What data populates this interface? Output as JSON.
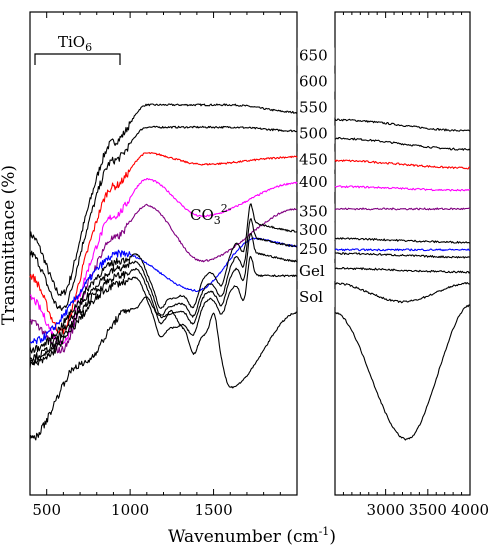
{
  "chart_data": {
    "type": "line",
    "xlabel_main": "Wavenumber (cm",
    "xlabel_sup": "-1",
    "xlabel_close": ")",
    "ylabel": "Transmittance (%)",
    "panels": [
      {
        "xlim": [
          400,
          2000
        ],
        "ticks": [
          500,
          1000,
          1500
        ]
      },
      {
        "xlim": [
          2400,
          4000
        ],
        "ticks": [
          3000,
          3500,
          4000
        ]
      }
    ],
    "annotations": {
      "tio6_main": "TiO",
      "tio6_sub": "6",
      "co3_main": "CO",
      "co3_sub": "3",
      "co3_sup": "2-"
    },
    "series": [
      {
        "name": "650",
        "color": "#000000",
        "level": 83,
        "shape": "calcined",
        "x": [
          400,
          600,
          900,
          1100,
          1600,
          2000,
          2400,
          4000
        ],
        "y": [
          35,
          18,
          60,
          70,
          70,
          68,
          66,
          63
        ]
      },
      {
        "name": "600",
        "color": "#000000",
        "level": 76,
        "shape": "calcined",
        "x": [
          400,
          600,
          900,
          1100,
          1600,
          2000,
          2400,
          4000
        ],
        "y": [
          30,
          14,
          55,
          64,
          64,
          63,
          61,
          58
        ]
      },
      {
        "name": "550",
        "color": "#ff0000",
        "level": 69,
        "shape": "calcined",
        "x": [
          400,
          600,
          900,
          1100,
          1430,
          2000,
          2400,
          4000
        ],
        "y": [
          24,
          8,
          48,
          57,
          54,
          56,
          55,
          53
        ]
      },
      {
        "name": "500",
        "color": "#ff00ff",
        "level": 62,
        "shape": "calcined",
        "x": [
          400,
          600,
          900,
          1100,
          1430,
          2000,
          2400,
          4000
        ],
        "y": [
          18,
          5,
          40,
          50,
          40,
          49,
          48,
          47
        ]
      },
      {
        "name": "450",
        "color": "#800080",
        "level": 55,
        "shape": "calcined",
        "x": [
          400,
          600,
          900,
          1100,
          1430,
          2000,
          2400,
          4000
        ],
        "y": [
          12,
          3,
          34,
          43,
          28,
          42,
          42,
          42
        ]
      },
      {
        "name": "400",
        "color": "#0000ff",
        "level": 49,
        "shape": "mid",
        "x": [
          400,
          950,
          1400,
          1750,
          2000,
          2400,
          4000
        ],
        "y": [
          6,
          30,
          20,
          34,
          32,
          31,
          31
        ]
      },
      {
        "name": "350",
        "color": "#000000",
        "level": 41,
        "shape": "organic",
        "x": [
          400,
          950,
          1250,
          1500,
          1730,
          2000,
          2400,
          4000
        ],
        "y": [
          4,
          28,
          18,
          25,
          38,
          36,
          34,
          33
        ]
      },
      {
        "name": "300",
        "color": "#000000",
        "level": 36,
        "shape": "organic",
        "x": [
          400,
          950,
          1250,
          1500,
          1730,
          2000,
          2400,
          4000
        ],
        "y": [
          2,
          26,
          16,
          22,
          34,
          32,
          30,
          29
        ]
      },
      {
        "name": "250",
        "color": "#000000",
        "level": 31,
        "shape": "organic",
        "x": [
          400,
          950,
          1250,
          1500,
          1730,
          2000,
          2400,
          4000
        ],
        "y": [
          1,
          24,
          14,
          20,
          30,
          28,
          26,
          25
        ]
      },
      {
        "name": "Gel",
        "color": "#000000",
        "level": 25,
        "shape": "organic",
        "x": [
          400,
          950,
          1250,
          1500,
          1730,
          2000,
          2400,
          3200,
          4000
        ],
        "y": [
          0,
          22,
          10,
          18,
          24,
          24,
          22,
          17,
          22
        ]
      },
      {
        "name": "Sol",
        "color": "#000000",
        "level": 18,
        "shape": "sol",
        "x": [
          400,
          700,
          1000,
          1500,
          1600,
          2000,
          2400,
          3250,
          4000
        ],
        "y": [
          -20,
          0,
          15,
          8,
          -6,
          14,
          14,
          -20,
          16
        ]
      }
    ]
  }
}
